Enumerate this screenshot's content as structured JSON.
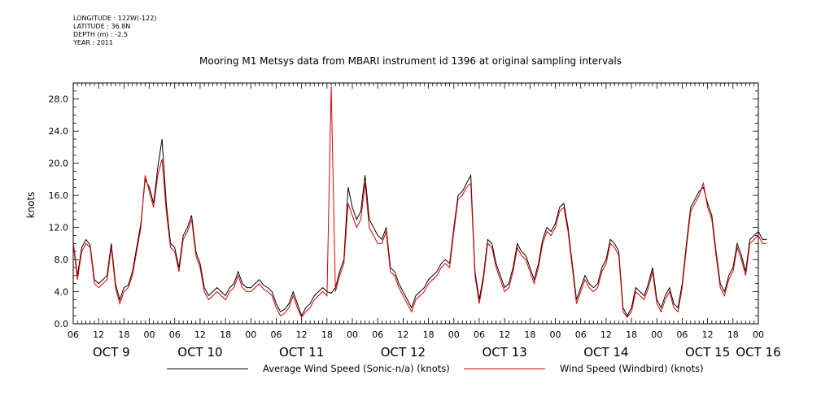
{
  "meta": {
    "longitude": "LONGITUDE : 122W(-122)",
    "latitude": "LATITUDE : 36.8N",
    "depth": "DEPTH (m) : -2.5",
    "year": "YEAR : 2011"
  },
  "colors": {
    "average": "#000000",
    "windbird": "#dd0000",
    "axis": "#000000"
  },
  "chart_data": {
    "type": "line",
    "title": "Mooring M1 Metsys data from MBARI instrument id 1396 at original sampling intervals",
    "ylabel": "knots",
    "xlabel": "",
    "ylim": [
      0,
      30
    ],
    "xlim": [
      0,
      162
    ],
    "x_unit": "hours since OCT 9 06:00",
    "yticks": [
      "0.0",
      "4.0",
      "8.0",
      "12.0",
      "16.0",
      "20.0",
      "24.0",
      "28.0"
    ],
    "xtick_labels": [
      "06",
      "12",
      "18",
      "00",
      "06",
      "12",
      "18",
      "00",
      "06",
      "12",
      "18",
      "00",
      "06",
      "12",
      "18",
      "00",
      "06",
      "12",
      "18",
      "00",
      "06",
      "12",
      "18",
      "00",
      "06",
      "12",
      "18",
      "00"
    ],
    "day_labels": [
      "OCT  9",
      "OCT 10",
      "OCT 11",
      "OCT 12",
      "OCT 13",
      "OCT 14",
      "OCT 15",
      "OCT 16"
    ],
    "day_label_hours": [
      9,
      30,
      54,
      78,
      102,
      126,
      150,
      162
    ],
    "legend": [
      "Average Wind Speed (Sonic-n/a) (knots)",
      "Wind Speed (Windbird) (knots)"
    ],
    "x": [
      0,
      1,
      2,
      3,
      4,
      5,
      6,
      7,
      8,
      9,
      10,
      11,
      12,
      13,
      14,
      15,
      16,
      17,
      18,
      19,
      20,
      21,
      22,
      23,
      24,
      25,
      26,
      27,
      28,
      29,
      30,
      31,
      32,
      33,
      34,
      35,
      36,
      37,
      38,
      39,
      40,
      41,
      42,
      43,
      44,
      45,
      46,
      47,
      48,
      49,
      50,
      51,
      52,
      53,
      54,
      55,
      56,
      57,
      58,
      59,
      60,
      61,
      62,
      63,
      64,
      65,
      66,
      67,
      68,
      69,
      70,
      71,
      72,
      73,
      74,
      75,
      76,
      77,
      78,
      79,
      80,
      81,
      82,
      83,
      84,
      85,
      86,
      87,
      88,
      89,
      90,
      91,
      92,
      93,
      94,
      95,
      96,
      97,
      98,
      99,
      100,
      101,
      102,
      103,
      104,
      105,
      106,
      107,
      108,
      109,
      110,
      111,
      112,
      113,
      114,
      115,
      116,
      117,
      118,
      119,
      120,
      121,
      122,
      123,
      124,
      125,
      126,
      127,
      128,
      129,
      130,
      131,
      132,
      133,
      134,
      135,
      136,
      137,
      138,
      139,
      140,
      141,
      142,
      143,
      144,
      145,
      146,
      147,
      148,
      149,
      150,
      151,
      152,
      153,
      154,
      155,
      156,
      157,
      158,
      159,
      160,
      161,
      162,
      163,
      164
    ],
    "series": [
      {
        "name": "Average Wind Speed (Sonic-n/a) (knots)",
        "values": [
          10.2,
          6.0,
          9.5,
          10.5,
          9.8,
          5.5,
          5.0,
          5.5,
          6.0,
          10.0,
          5.0,
          3.0,
          4.5,
          4.8,
          6.5,
          9.5,
          12.5,
          18.0,
          17.0,
          15.0,
          19.5,
          23.0,
          15.0,
          10.0,
          9.5,
          7.0,
          11.0,
          12.0,
          13.5,
          9.0,
          7.5,
          4.5,
          3.5,
          4.0,
          4.5,
          4.0,
          3.5,
          4.5,
          5.0,
          6.5,
          5.0,
          4.5,
          4.5,
          5.0,
          5.5,
          4.8,
          4.5,
          4.0,
          2.5,
          1.5,
          1.8,
          2.5,
          4.0,
          2.5,
          1.0,
          2.0,
          2.5,
          3.5,
          4.0,
          4.5,
          4.0,
          3.8,
          4.5,
          6.5,
          8.0,
          17.0,
          14.5,
          13.0,
          14.0,
          18.5,
          13.0,
          12.0,
          11.0,
          10.5,
          12.0,
          7.0,
          6.5,
          5.0,
          4.0,
          3.0,
          2.0,
          3.5,
          4.0,
          4.5,
          5.5,
          6.0,
          6.5,
          7.5,
          8.0,
          7.5,
          12.0,
          16.0,
          16.5,
          17.5,
          18.5,
          6.5,
          3.0,
          6.0,
          10.5,
          10.0,
          7.5,
          6.0,
          4.5,
          5.0,
          7.0,
          10.0,
          9.0,
          8.5,
          7.0,
          5.5,
          7.5,
          10.5,
          12.0,
          11.5,
          12.5,
          14.5,
          15.0,
          12.0,
          7.5,
          3.0,
          4.5,
          6.0,
          5.0,
          4.5,
          5.0,
          7.0,
          8.0,
          10.5,
          10.0,
          9.0,
          2.0,
          1.0,
          2.0,
          4.5,
          4.0,
          3.5,
          5.0,
          7.0,
          3.0,
          2.0,
          3.5,
          4.5,
          2.5,
          2.0,
          5.0,
          10.0,
          14.5,
          15.5,
          16.5,
          17.0,
          15.0,
          13.5,
          9.0,
          5.0,
          4.0,
          6.0,
          7.0,
          10.0,
          8.5,
          6.5,
          10.5,
          11.0,
          11.5,
          10.5,
          10.5
        ]
      },
      {
        "name": "Wind Speed (Windbird) (knots)",
        "values": [
          10.0,
          5.5,
          9.0,
          10.0,
          9.5,
          5.0,
          4.5,
          5.0,
          5.5,
          9.5,
          4.5,
          2.5,
          4.0,
          4.5,
          6.0,
          9.0,
          12.0,
          18.5,
          16.5,
          14.5,
          18.5,
          20.5,
          14.0,
          9.5,
          9.0,
          6.5,
          10.5,
          11.5,
          13.0,
          8.5,
          7.0,
          4.0,
          3.0,
          3.5,
          4.0,
          3.5,
          3.0,
          4.0,
          4.5,
          6.0,
          4.5,
          4.0,
          4.0,
          4.5,
          5.0,
          4.3,
          4.0,
          3.5,
          2.0,
          1.0,
          1.3,
          2.0,
          3.5,
          2.0,
          0.8,
          1.5,
          2.0,
          3.0,
          3.5,
          4.0,
          3.5,
          29.5,
          4.0,
          6.0,
          7.5,
          15.0,
          13.5,
          12.0,
          13.0,
          17.5,
          12.0,
          11.0,
          10.0,
          10.0,
          11.5,
          6.5,
          6.0,
          4.5,
          3.5,
          2.5,
          1.5,
          3.0,
          3.5,
          4.0,
          5.0,
          5.5,
          6.0,
          7.0,
          7.5,
          7.0,
          11.5,
          15.5,
          16.0,
          17.0,
          17.5,
          6.0,
          2.5,
          5.5,
          10.0,
          9.5,
          7.0,
          5.5,
          4.0,
          4.5,
          6.5,
          9.5,
          8.5,
          8.0,
          6.5,
          5.0,
          7.0,
          10.0,
          11.5,
          11.0,
          12.0,
          14.0,
          14.5,
          11.5,
          7.0,
          2.5,
          4.0,
          5.5,
          4.5,
          4.0,
          4.5,
          6.5,
          7.5,
          10.0,
          9.5,
          8.5,
          1.5,
          0.8,
          1.5,
          4.0,
          3.5,
          3.0,
          4.5,
          6.5,
          2.5,
          1.5,
          3.0,
          4.0,
          2.0,
          1.5,
          4.5,
          9.5,
          14.0,
          15.0,
          16.0,
          17.5,
          14.5,
          13.0,
          8.5,
          4.5,
          3.5,
          5.5,
          6.5,
          9.5,
          8.0,
          6.0,
          10.0,
          10.5,
          11.0,
          10.0,
          10.0
        ]
      }
    ]
  }
}
